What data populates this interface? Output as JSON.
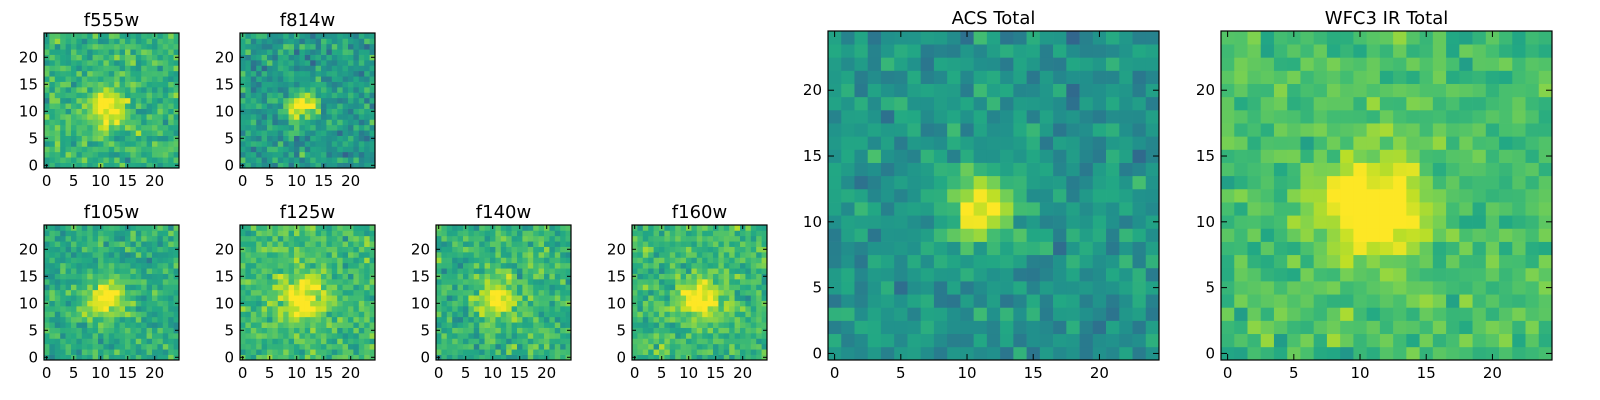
{
  "chart_data": [
    {
      "type": "heatmap",
      "title": "f555w",
      "colormap": "viridis",
      "xlim": [
        0,
        24
      ],
      "ylim": [
        0,
        24
      ],
      "xticks": [
        0,
        5,
        10,
        15,
        20
      ],
      "yticks": [
        0,
        5,
        10,
        15,
        20
      ],
      "grid_size": 25,
      "source": {
        "center": [
          11,
          11
        ],
        "radius": 2.5,
        "peak": 0.75
      },
      "background": {
        "mean": 0.65,
        "spread": 0.14,
        "seed": 11
      }
    },
    {
      "type": "heatmap",
      "title": "f814w",
      "colormap": "viridis",
      "xlim": [
        0,
        24
      ],
      "ylim": [
        0,
        24
      ],
      "xticks": [
        0,
        5,
        10,
        15,
        20
      ],
      "yticks": [
        0,
        5,
        10,
        15,
        20
      ],
      "grid_size": 25,
      "source": {
        "center": [
          11,
          11
        ],
        "radius": 1.8,
        "peak": 0.9
      },
      "background": {
        "mean": 0.55,
        "spread": 0.15,
        "seed": 23
      }
    },
    {
      "type": "heatmap",
      "title": "f105w",
      "colormap": "viridis",
      "xlim": [
        0,
        24
      ],
      "ylim": [
        0,
        24
      ],
      "xticks": [
        0,
        5,
        10,
        15,
        20
      ],
      "yticks": [
        0,
        5,
        10,
        15,
        20
      ],
      "grid_size": 25,
      "source": {
        "center": [
          11,
          11
        ],
        "radius": 2.6,
        "peak": 0.75
      },
      "background": {
        "mean": 0.62,
        "spread": 0.13,
        "seed": 37
      }
    },
    {
      "type": "heatmap",
      "title": "f125w",
      "colormap": "viridis",
      "xlim": [
        0,
        24
      ],
      "ylim": [
        0,
        24
      ],
      "xticks": [
        0,
        5,
        10,
        15,
        20
      ],
      "yticks": [
        0,
        5,
        10,
        15,
        20
      ],
      "grid_size": 25,
      "source": {
        "center": [
          11,
          11
        ],
        "radius": 2.8,
        "peak": 0.75
      },
      "background": {
        "mean": 0.68,
        "spread": 0.13,
        "seed": 41
      }
    },
    {
      "type": "heatmap",
      "title": "f140w",
      "colormap": "viridis",
      "xlim": [
        0,
        24
      ],
      "ylim": [
        0,
        24
      ],
      "xticks": [
        0,
        5,
        10,
        15,
        20
      ],
      "yticks": [
        0,
        5,
        10,
        15,
        20
      ],
      "grid_size": 25,
      "source": {
        "center": [
          11,
          11
        ],
        "radius": 2.5,
        "peak": 0.72
      },
      "background": {
        "mean": 0.65,
        "spread": 0.14,
        "seed": 53
      }
    },
    {
      "type": "heatmap",
      "title": "f160w",
      "colormap": "viridis",
      "xlim": [
        0,
        24
      ],
      "ylim": [
        0,
        24
      ],
      "xticks": [
        0,
        5,
        10,
        15,
        20
      ],
      "yticks": [
        0,
        5,
        10,
        15,
        20
      ],
      "grid_size": 25,
      "source": {
        "center": [
          12,
          11
        ],
        "radius": 2.5,
        "peak": 0.78
      },
      "background": {
        "mean": 0.68,
        "spread": 0.13,
        "seed": 67
      }
    },
    {
      "type": "heatmap",
      "title": "ACS Total",
      "colormap": "viridis",
      "xlim": [
        0,
        24
      ],
      "ylim": [
        0,
        24
      ],
      "xticks": [
        0,
        5,
        10,
        15,
        20
      ],
      "yticks": [
        0,
        5,
        10,
        15,
        20
      ],
      "grid_size": 25,
      "source": {
        "center": [
          11,
          11
        ],
        "radius": 1.8,
        "peak": 0.95
      },
      "background": {
        "mean": 0.52,
        "spread": 0.12,
        "seed": 79
      }
    },
    {
      "type": "heatmap",
      "title": "WFC3 IR Total",
      "colormap": "viridis",
      "xlim": [
        0,
        24
      ],
      "ylim": [
        0,
        24
      ],
      "xticks": [
        0,
        5,
        10,
        15,
        20
      ],
      "yticks": [
        0,
        5,
        10,
        15,
        20
      ],
      "grid_size": 25,
      "source": {
        "center": [
          11,
          11
        ],
        "radius": 2.5,
        "peak": 0.92
      },
      "background": {
        "mean": 0.7,
        "spread": 0.1,
        "seed": 97
      }
    }
  ]
}
